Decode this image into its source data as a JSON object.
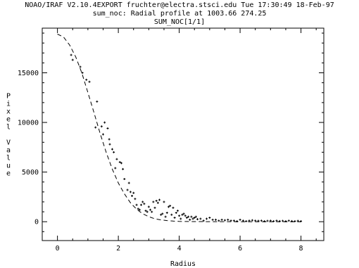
{
  "header": {
    "line1": "NOAO/IRAF V2.10.4EXPORT fruchter@electra.stsci.edu Tue 17:30:49 18-Feb-97",
    "line2": "sum_noc: Radial profile at 1003.66 274.25",
    "line3": "SUM_NOC[1/1]"
  },
  "chart_data": {
    "type": "scatter",
    "title": "sum_noc: Radial profile at 1003.66 274.25",
    "subtitle": "SUM_NOC[1/1]",
    "xlabel": "Radius",
    "ylabel": "Pixel Value",
    "xlim": [
      -0.5,
      8.75
    ],
    "ylim": [
      -1900,
      19500
    ],
    "x_ticks": [
      0,
      2,
      4,
      6,
      8
    ],
    "y_ticks": [
      0,
      5000,
      10000,
      15000
    ],
    "grid": false,
    "series": [
      {
        "style": "points",
        "x": [
          0.45,
          0.5,
          0.75,
          0.82,
          0.95,
          1.05,
          1.25,
          1.3,
          1.45,
          1.5,
          1.55,
          1.65,
          1.7,
          1.72,
          1.8,
          1.85,
          1.9,
          1.95,
          2.05,
          2.1,
          2.15,
          2.2,
          2.3,
          2.35,
          2.4,
          2.45,
          2.5,
          2.55,
          2.6,
          2.65,
          2.7,
          2.75,
          2.8,
          2.85,
          2.9,
          2.95,
          3.0,
          3.05,
          3.1,
          3.15,
          3.2,
          3.25,
          3.3,
          3.35,
          3.4,
          3.45,
          3.5,
          3.55,
          3.6,
          3.65,
          3.7,
          3.75,
          3.8,
          3.85,
          3.9,
          3.95,
          4.0,
          4.05,
          4.1,
          4.15,
          4.2,
          4.25,
          4.3,
          4.35,
          4.4,
          4.45,
          4.5,
          4.55,
          4.6,
          4.7,
          4.8,
          4.9,
          5.0,
          5.1,
          5.2,
          5.3,
          5.4,
          5.5,
          5.6,
          5.7,
          5.8,
          5.9,
          6.0,
          6.1,
          6.2,
          6.3,
          6.4,
          6.5,
          6.6,
          6.7,
          6.8,
          6.9,
          7.0,
          7.1,
          7.2,
          7.3,
          7.4,
          7.5,
          7.6,
          7.7,
          7.8,
          7.9,
          8.0
        ],
        "y": [
          16800,
          16300,
          15600,
          15000,
          14300,
          14100,
          9500,
          12100,
          9600,
          8800,
          10000,
          9400,
          8300,
          7800,
          7300,
          7000,
          5400,
          6300,
          6000,
          5900,
          5300,
          4300,
          3200,
          3900,
          3000,
          2600,
          2900,
          2300,
          1700,
          1300,
          1200,
          1700,
          2000,
          1800,
          1100,
          1000,
          1500,
          1200,
          1000,
          2000,
          1400,
          2100,
          1900,
          2200,
          700,
          800,
          2000,
          500,
          900,
          1500,
          1600,
          700,
          1400,
          400,
          900,
          1100,
          600,
          300,
          700,
          800,
          600,
          400,
          500,
          200,
          500,
          300,
          400,
          500,
          250,
          300,
          100,
          300,
          400,
          200,
          200,
          100,
          200,
          150,
          200,
          100,
          100,
          50,
          200,
          100,
          50,
          100,
          150,
          100,
          80,
          100,
          50,
          80,
          100,
          50,
          100,
          60,
          80,
          50,
          100,
          60,
          50,
          80,
          50
        ]
      },
      {
        "style": "dashed",
        "x": [
          0,
          0.2,
          0.4,
          0.6,
          0.8,
          1.0,
          1.2,
          1.4,
          1.6,
          1.8,
          2.0,
          2.2,
          2.4,
          2.6,
          2.8,
          3.0,
          3.2,
          3.4,
          3.6,
          3.8,
          4.0,
          4.5,
          5.0,
          6.0,
          7.0,
          8.0
        ],
        "y": [
          18900,
          18600,
          17800,
          16600,
          15000,
          13000,
          11000,
          8900,
          7000,
          5300,
          3900,
          2800,
          1900,
          1250,
          800,
          500,
          300,
          180,
          110,
          60,
          30,
          10,
          5,
          0,
          0,
          0
        ]
      }
    ]
  }
}
